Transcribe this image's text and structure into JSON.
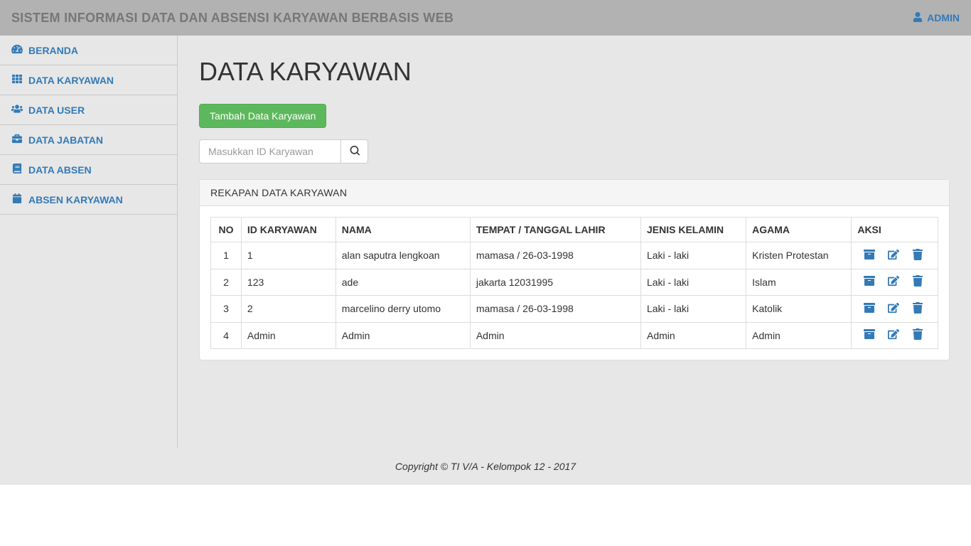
{
  "topbar": {
    "title": "SISTEM INFORMASI DATA DAN ABSENSI KARYAWAN BERBASIS WEB",
    "user_label": "ADMIN"
  },
  "sidebar": {
    "items": [
      {
        "icon": "tachometer",
        "label": "BERANDA"
      },
      {
        "icon": "th",
        "label": "DATA KARYAWAN"
      },
      {
        "icon": "users",
        "label": "DATA USER"
      },
      {
        "icon": "briefcase",
        "label": "DATA JABATAN"
      },
      {
        "icon": "book",
        "label": "DATA ABSEN"
      },
      {
        "icon": "calendar",
        "label": "ABSEN KARYAWAN"
      }
    ]
  },
  "page": {
    "title": "DATA KARYAWAN",
    "add_button": "Tambah Data Karyawan",
    "search_placeholder": "Masukkan ID Karyawan",
    "panel_title": "REKAPAN DATA KARYAWAN"
  },
  "table": {
    "columns": [
      "NO",
      "ID KARYAWAN",
      "NAMA",
      "TEMPAT / TANGGAL LAHIR",
      "JENIS KELAMIN",
      "AGAMA",
      "AKSI"
    ],
    "rows": [
      {
        "no": "1",
        "id": "1",
        "nama": "alan saputra lengkoan",
        "ttl": "mamasa / 26-03-1998",
        "jk": "Laki - laki",
        "agama": "Kristen Protestan"
      },
      {
        "no": "2",
        "id": "123",
        "nama": "ade",
        "ttl": "jakarta 12031995",
        "jk": "Laki - laki",
        "agama": "Islam"
      },
      {
        "no": "3",
        "id": "2",
        "nama": "marcelino derry utomo",
        "ttl": "mamasa / 26-03-1998",
        "jk": "Laki - laki",
        "agama": "Katolik"
      },
      {
        "no": "4",
        "id": "Admin",
        "nama": "Admin",
        "ttl": "Admin",
        "jk": "Admin",
        "agama": "Admin"
      }
    ]
  },
  "footer": {
    "text": "Copyright © TI V/A - Kelompok 12 - 2017"
  },
  "colors": {
    "topbar_bg": "#b2b2b2",
    "sidebar_bg": "#e7e7e7",
    "link": "#337ab7",
    "btn_success": "#5cb85c",
    "border": "#dddddd"
  }
}
